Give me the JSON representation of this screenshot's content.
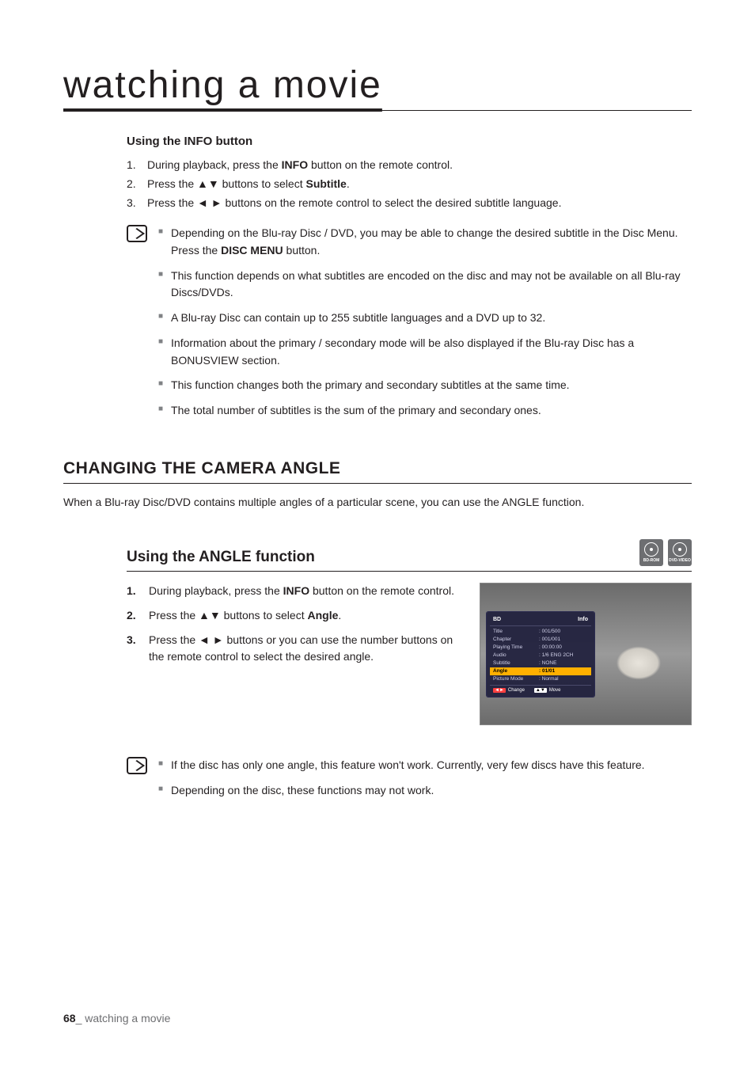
{
  "page_title": "watching a movie",
  "info_button": {
    "heading": "Using the INFO button",
    "steps": [
      {
        "n": "1.",
        "t_pre": "During playback, press the ",
        "t_b1": "INFO",
        "t_post": " button on the remote control."
      },
      {
        "n": "2.",
        "t_pre": "Press the ▲▼ buttons to select ",
        "t_b1": "Subtitle",
        "t_post": "."
      },
      {
        "n": "3.",
        "t_pre": "Press the ◄ ► buttons on the remote control to select the desired subtitle language.",
        "t_b1": "",
        "t_post": ""
      }
    ],
    "notes": [
      {
        "pre": "Depending on the Blu-ray Disc / DVD, you may be able to change the desired subtitle in the Disc Menu. Press the ",
        "b": "DISC MENU",
        "post": " button."
      },
      {
        "pre": "This function depends on what subtitles are encoded on the disc and may not be available on all Blu-ray Discs/DVDs.",
        "b": "",
        "post": ""
      },
      {
        "pre": "A Blu-ray Disc can contain up to 255 subtitle languages and a DVD up to 32.",
        "b": "",
        "post": ""
      },
      {
        "pre": "Information about the primary / secondary mode will be also displayed if the Blu-ray Disc has a BONUSVIEW section.",
        "b": "",
        "post": ""
      },
      {
        "pre": "This function changes both the primary and secondary subtitles at the same time.",
        "b": "",
        "post": ""
      },
      {
        "pre": "The total number of subtitles is the sum of the primary and secondary ones.",
        "b": "",
        "post": ""
      }
    ]
  },
  "camera_angle": {
    "h2": "CHANGING THE CAMERA ANGLE",
    "intro": "When a Blu-ray Disc/DVD contains multiple angles of a particular scene, you can use the ANGLE function.",
    "h3": "Using the ANGLE function",
    "disc_labels": [
      "BD-ROM",
      "DVD-VIDEO"
    ],
    "steps": [
      {
        "n": "1.",
        "pre": "During playback, press the ",
        "b": "INFO",
        "post": " button on the remote control."
      },
      {
        "n": "2.",
        "pre": "Press the ▲▼ buttons to select ",
        "b": "Angle",
        "post": "."
      },
      {
        "n": "3.",
        "pre": "Press the ◄ ► buttons or you can use the number buttons on the remote control to select the desired angle.",
        "b": "",
        "post": ""
      }
    ],
    "notes": [
      {
        "pre": "If the disc has only one angle, this feature won't work. Currently, very few discs have this feature.",
        "b": "",
        "post": ""
      },
      {
        "pre": "Depending on the disc, these functions may not work.",
        "b": "",
        "post": ""
      }
    ]
  },
  "osd": {
    "header_left": "BD",
    "header_right": "Info",
    "rows": [
      {
        "k": "Title",
        "v": "001/500",
        "hl": false
      },
      {
        "k": "Chapter",
        "v": "001/001",
        "hl": false
      },
      {
        "k": "Playing Time",
        "v": "00:00:00",
        "hl": false
      },
      {
        "k": "Audio",
        "v": "1/6 ENG 2CH",
        "hl": false
      },
      {
        "k": "Subtitle",
        "v": "NONE",
        "hl": false
      },
      {
        "k": "Angle",
        "v": "01/01",
        "hl": true
      },
      {
        "k": "Picture Mode",
        "v": "Normal",
        "hl": false
      }
    ],
    "footer": [
      {
        "badge": "◄►",
        "label": "Change",
        "cls": "b"
      },
      {
        "badge": "▲▼",
        "label": "Move",
        "cls": "b2"
      }
    ]
  },
  "footer": {
    "page": "68",
    "label": "_ watching a movie"
  },
  "colors": {
    "text": "#231f20",
    "muted": "#6d6e71",
    "highlight": "#ffb000",
    "panel": "#1e1e3c"
  }
}
